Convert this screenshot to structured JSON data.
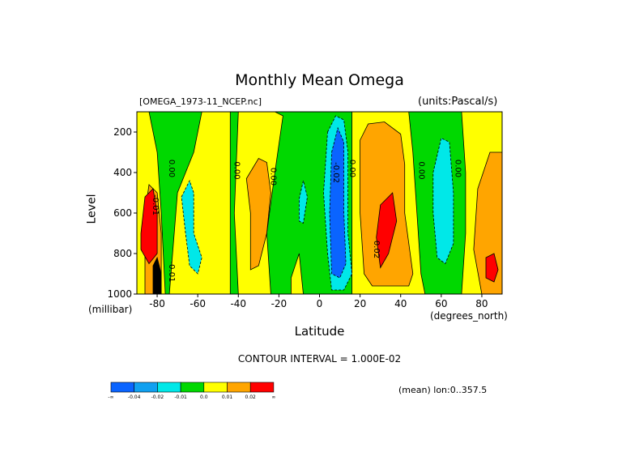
{
  "chart_data": {
    "type": "heatmap",
    "title": "Monthly Mean Omega",
    "file_label": "[OMEGA_1973-11_NCEP.nc]",
    "units_label": "(units:Pascal/s)",
    "xlabel": "Latitude",
    "xunits": "(degrees_north)",
    "ylabel": "Level",
    "yunits": "(millibar)",
    "xlim": [
      -90,
      90
    ],
    "ylim": [
      1000,
      100
    ],
    "x_ticks": [
      "-80",
      "-60",
      "-40",
      "-20",
      "0",
      "20",
      "40",
      "60",
      "80"
    ],
    "x_tick_values": [
      -80,
      -60,
      -40,
      -20,
      0,
      20,
      40,
      60,
      80
    ],
    "y_ticks": [
      "200",
      "400",
      "600",
      "800",
      "1000"
    ],
    "y_tick_values": [
      200,
      400,
      600,
      800,
      1000
    ],
    "contour_interval_text": "CONTOUR INTERVAL = 1.000E-02",
    "mean_text": "(mean) lon:0..357.5",
    "colorbar": {
      "colors": [
        "#0a64ff",
        "#10a0f0",
        "#00e8e8",
        "#00d800",
        "#ffff00",
        "#ffa500",
        "#ff0000"
      ],
      "labels": [
        "-∞",
        "-0.04",
        "-0.02",
        "-0.01",
        "0.0",
        "0.01",
        "0.02",
        "∞"
      ]
    },
    "contour_labels": [
      {
        "text": "0.00",
        "lat": -74,
        "p": 380
      },
      {
        "text": "0.00",
        "lat": -42,
        "p": 390
      },
      {
        "text": "0.00",
        "lat": -24,
        "p": 420
      },
      {
        "text": "-0.02",
        "lat": 7,
        "p": 400
      },
      {
        "text": "0.00",
        "lat": 15,
        "p": 380
      },
      {
        "text": "0.02",
        "lat": 27,
        "p": 780
      },
      {
        "text": "0.00",
        "lat": 49,
        "p": 390
      },
      {
        "text": "0.00",
        "lat": 67,
        "p": 380
      },
      {
        "text": "-0.01",
        "lat": -82,
        "p": 560
      },
      {
        "text": "-0.01",
        "lat": -74,
        "p": 890
      }
    ],
    "regions": [
      {
        "name": "polar-south-yellow",
        "level": 0.0,
        "pts": [
          [
            -90,
            100
          ],
          [
            -84,
            100
          ],
          [
            -80,
            300
          ],
          [
            -78,
            600
          ],
          [
            -76,
            1000
          ],
          [
            -90,
            1000
          ]
        ]
      },
      {
        "name": "south-yellow-band",
        "level": 0.0,
        "pts": [
          [
            -74,
            1000
          ],
          [
            -70,
            500
          ],
          [
            -62,
            300
          ],
          [
            -58,
            100
          ],
          [
            -44,
            100
          ],
          [
            -44,
            1000
          ]
        ]
      },
      {
        "name": "mid-south-yellow",
        "level": 0.0,
        "pts": [
          [
            -40,
            100
          ],
          [
            -22,
            100
          ],
          [
            -18,
            120
          ],
          [
            -22,
            400
          ],
          [
            -26,
            700
          ],
          [
            -24,
            1000
          ],
          [
            -40,
            1000
          ],
          [
            -42,
            600
          ]
        ]
      },
      {
        "name": "south-orange",
        "level": 0.01,
        "pts": [
          [
            -36,
            430
          ],
          [
            -30,
            330
          ],
          [
            -26,
            350
          ],
          [
            -24,
            500
          ],
          [
            -26,
            700
          ],
          [
            -30,
            860
          ],
          [
            -34,
            880
          ],
          [
            -34,
            600
          ]
        ]
      },
      {
        "name": "near-equator-yellow",
        "level": 0.0,
        "pts": [
          [
            -14,
            920
          ],
          [
            -10,
            800
          ],
          [
            -8,
            1000
          ],
          [
            -14,
            1000
          ]
        ]
      },
      {
        "name": "ne-yellow-big",
        "level": 0.0,
        "pts": [
          [
            16,
            100
          ],
          [
            44,
            100
          ],
          [
            46,
            300
          ],
          [
            48,
            600
          ],
          [
            50,
            900
          ],
          [
            52,
            1000
          ],
          [
            16,
            1000
          ]
        ]
      },
      {
        "name": "ne-orange",
        "level": 0.01,
        "pts": [
          [
            20,
            240
          ],
          [
            24,
            160
          ],
          [
            32,
            150
          ],
          [
            40,
            210
          ],
          [
            42,
            360
          ],
          [
            42,
            600
          ],
          [
            46,
            900
          ],
          [
            44,
            960
          ],
          [
            36,
            960
          ],
          [
            26,
            960
          ],
          [
            22,
            900
          ],
          [
            20,
            600
          ]
        ]
      },
      {
        "name": "ne-red",
        "level": 0.02,
        "pts": [
          [
            28,
            720
          ],
          [
            30,
            560
          ],
          [
            36,
            500
          ],
          [
            38,
            640
          ],
          [
            34,
            800
          ],
          [
            30,
            870
          ]
        ]
      },
      {
        "name": "north-yellow",
        "level": 0.0,
        "pts": [
          [
            70,
            100
          ],
          [
            90,
            100
          ],
          [
            90,
            1000
          ],
          [
            70,
            1000
          ],
          [
            72,
            700
          ],
          [
            72,
            400
          ]
        ]
      },
      {
        "name": "north-orange",
        "level": 0.01,
        "pts": [
          [
            78,
            480
          ],
          [
            84,
            300
          ],
          [
            90,
            300
          ],
          [
            90,
            1000
          ],
          [
            80,
            1000
          ],
          [
            76,
            780
          ]
        ]
      },
      {
        "name": "north-red",
        "level": 0.02,
        "pts": [
          [
            82,
            920
          ],
          [
            82,
            820
          ],
          [
            86,
            800
          ],
          [
            88,
            880
          ],
          [
            86,
            940
          ]
        ]
      },
      {
        "name": "south-cyan",
        "level": -0.02,
        "pts": [
          [
            -68,
            520
          ],
          [
            -64,
            440
          ],
          [
            -62,
            500
          ],
          [
            -62,
            700
          ],
          [
            -58,
            820
          ],
          [
            -60,
            900
          ],
          [
            -64,
            860
          ],
          [
            -66,
            700
          ]
        ]
      },
      {
        "name": "eq-cyan-small",
        "level": -0.02,
        "pts": [
          [
            -10,
            530
          ],
          [
            -8,
            440
          ],
          [
            -6,
            520
          ],
          [
            -8,
            650
          ],
          [
            -10,
            640
          ]
        ]
      },
      {
        "name": "eq-cyan",
        "level": -0.02,
        "pts": [
          [
            4,
            200
          ],
          [
            8,
            120
          ],
          [
            12,
            140
          ],
          [
            14,
            300
          ],
          [
            14,
            700
          ],
          [
            16,
            900
          ],
          [
            12,
            980
          ],
          [
            6,
            980
          ],
          [
            4,
            800
          ],
          [
            2,
            500
          ]
        ]
      },
      {
        "name": "eq-blue",
        "level": -0.04,
        "pts": [
          [
            6,
            300
          ],
          [
            9,
            180
          ],
          [
            12,
            250
          ],
          [
            12,
            600
          ],
          [
            13,
            850
          ],
          [
            10,
            920
          ],
          [
            6,
            900
          ],
          [
            5,
            600
          ]
        ]
      },
      {
        "name": "north-cyan",
        "level": -0.02,
        "pts": [
          [
            56,
            400
          ],
          [
            60,
            230
          ],
          [
            64,
            250
          ],
          [
            66,
            500
          ],
          [
            66,
            750
          ],
          [
            62,
            850
          ],
          [
            58,
            820
          ],
          [
            56,
            600
          ]
        ]
      },
      {
        "name": "south-polar-orange",
        "level": 0.01,
        "pts": [
          [
            -86,
            900
          ],
          [
            -86,
            600
          ],
          [
            -84,
            460
          ],
          [
            -80,
            500
          ],
          [
            -78,
            700
          ],
          [
            -78,
            900
          ],
          [
            -80,
            1000
          ],
          [
            -86,
            1000
          ]
        ]
      },
      {
        "name": "south-polar-red",
        "level": 0.02,
        "pts": [
          [
            -88,
            700
          ],
          [
            -86,
            520
          ],
          [
            -82,
            480
          ],
          [
            -80,
            600
          ],
          [
            -80,
            800
          ],
          [
            -84,
            850
          ],
          [
            -88,
            780
          ]
        ]
      },
      {
        "name": "south-polar-black",
        "level": -99,
        "pts": [
          [
            -82,
            860
          ],
          [
            -80,
            820
          ],
          [
            -78,
            900
          ],
          [
            -78,
            1000
          ],
          [
            -82,
            1000
          ]
        ]
      }
    ]
  }
}
